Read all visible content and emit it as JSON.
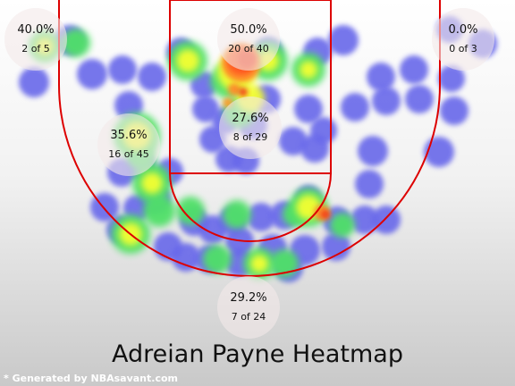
{
  "chart_data": {
    "type": "heatmap",
    "title": "Adreian Payne Heatmap",
    "footer": "* Generated by NBAsavant.com",
    "zones": [
      {
        "id": "left-corner-three",
        "pct": "40.0%",
        "count": "2 of 5"
      },
      {
        "id": "paint",
        "pct": "50.0%",
        "count": "20 of 40"
      },
      {
        "id": "right-corner-three",
        "pct": "0.0%",
        "count": "0 of 3"
      },
      {
        "id": "mid-range-center",
        "pct": "27.6%",
        "count": "8 of 29"
      },
      {
        "id": "mid-range-left",
        "pct": "35.6%",
        "count": "16 of 45"
      },
      {
        "id": "above-break-three",
        "pct": "29.2%",
        "count": "7 of 24"
      }
    ]
  }
}
